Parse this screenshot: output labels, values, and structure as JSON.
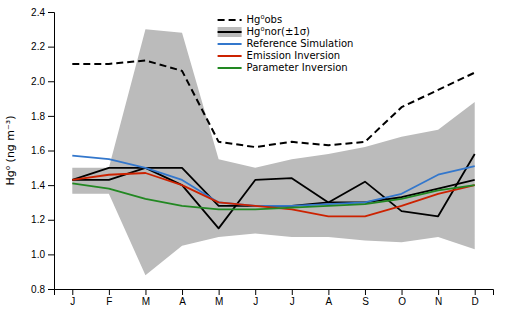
{
  "chart_data": {
    "type": "line",
    "y_label": "Hg⁰ (ng m⁻³)",
    "categories": [
      "J",
      "F",
      "M",
      "A",
      "M",
      "J",
      "J",
      "A",
      "S",
      "O",
      "N",
      "D"
    ],
    "series": [
      {
        "name": "Hg⁰obs",
        "color": "black",
        "line_style": "dashed",
        "values": [
          2.1,
          2.1,
          2.12,
          2.06,
          1.65,
          1.62,
          1.65,
          1.63,
          1.65,
          1.85,
          1.95,
          2.05
        ]
      },
      {
        "type": "area",
        "color": "#bbbbbb",
        "lower": [
          1.35,
          1.35,
          0.88,
          1.05,
          1.1,
          1.12,
          1.1,
          1.1,
          1.08,
          1.07,
          1.1,
          1.03
        ],
        "upper": [
          1.5,
          1.5,
          2.3,
          2.28,
          1.55,
          1.5,
          1.55,
          1.58,
          1.62,
          1.68,
          1.72,
          1.88
        ]
      },
      {
        "name": "Hg⁰nor(±1σ)",
        "color": "black",
        "line_style": "solid",
        "values": [
          1.43,
          1.43,
          1.5,
          1.5,
          1.28,
          1.28,
          1.28,
          1.3,
          1.3,
          1.33,
          1.38,
          1.43
        ]
      },
      {
        "color": "black",
        "line_style": "solid",
        "values": [
          1.43,
          1.5,
          1.5,
          1.4,
          1.15,
          1.43,
          1.44,
          1.3,
          1.42,
          1.25,
          1.22,
          1.58
        ]
      },
      {
        "name": "Reference Simulation",
        "color": "#3377cc",
        "line_style": "solid",
        "values": [
          1.57,
          1.55,
          1.5,
          1.43,
          1.3,
          1.28,
          1.28,
          1.29,
          1.3,
          1.35,
          1.46,
          1.51
        ]
      },
      {
        "name": "Emission Inversion",
        "color": "#cc2200",
        "line_style": "solid",
        "values": [
          1.43,
          1.46,
          1.47,
          1.4,
          1.3,
          1.28,
          1.26,
          1.22,
          1.22,
          1.28,
          1.35,
          1.4
        ]
      },
      {
        "name": "Parameter Inversion",
        "color": "#228822",
        "line_style": "solid",
        "values": [
          1.41,
          1.38,
          1.32,
          1.28,
          1.26,
          1.26,
          1.27,
          1.28,
          1.29,
          1.32,
          1.37,
          1.4
        ]
      }
    ],
    "ylim": [
      0.8,
      2.4
    ],
    "yticks": [
      0.8,
      {
        "value": 1.0,
        "label": "1.0"
      },
      1.2,
      1.4,
      1.6,
      1.8,
      {
        "value": 2.0,
        "label": "2.0"
      },
      2.2,
      2.4
    ],
    "grid": false,
    "legend": "top"
  }
}
